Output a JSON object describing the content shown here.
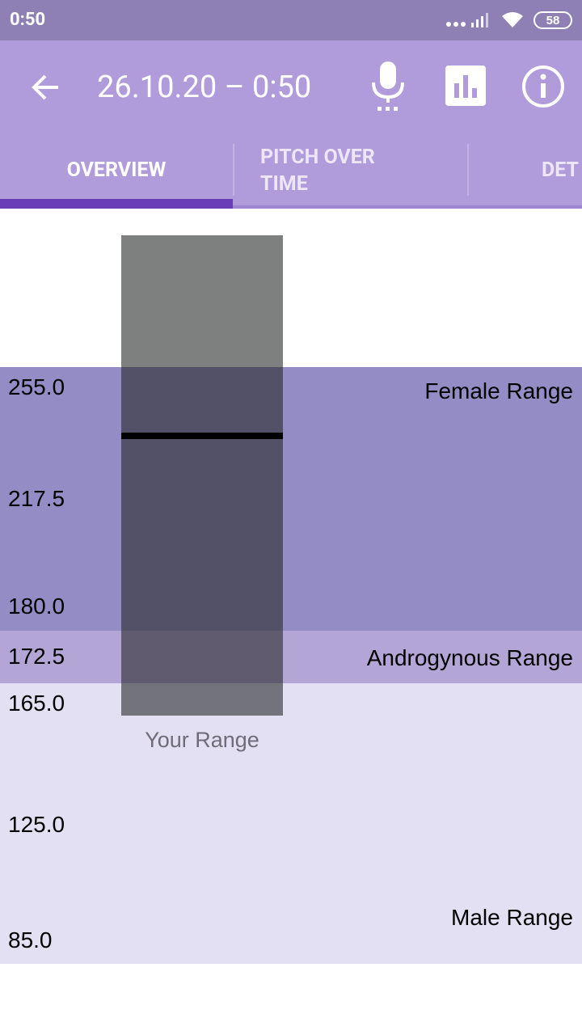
{
  "status_bar": {
    "time": "0:50",
    "battery": "58"
  },
  "toolbar": {
    "title": "26.10.20 – 0:50"
  },
  "tabs": [
    "OVERVIEW",
    "PITCH OVER TIME",
    "DET"
  ],
  "range_chart": {
    "axis_labels": [
      "255.0",
      "217.5",
      "180.0",
      "172.5",
      "165.0",
      "125.0",
      "85.0"
    ],
    "bands": [
      "Female Range",
      "Androgynous Range",
      "Male Range"
    ],
    "your_range_label": "Your Range"
  }
}
